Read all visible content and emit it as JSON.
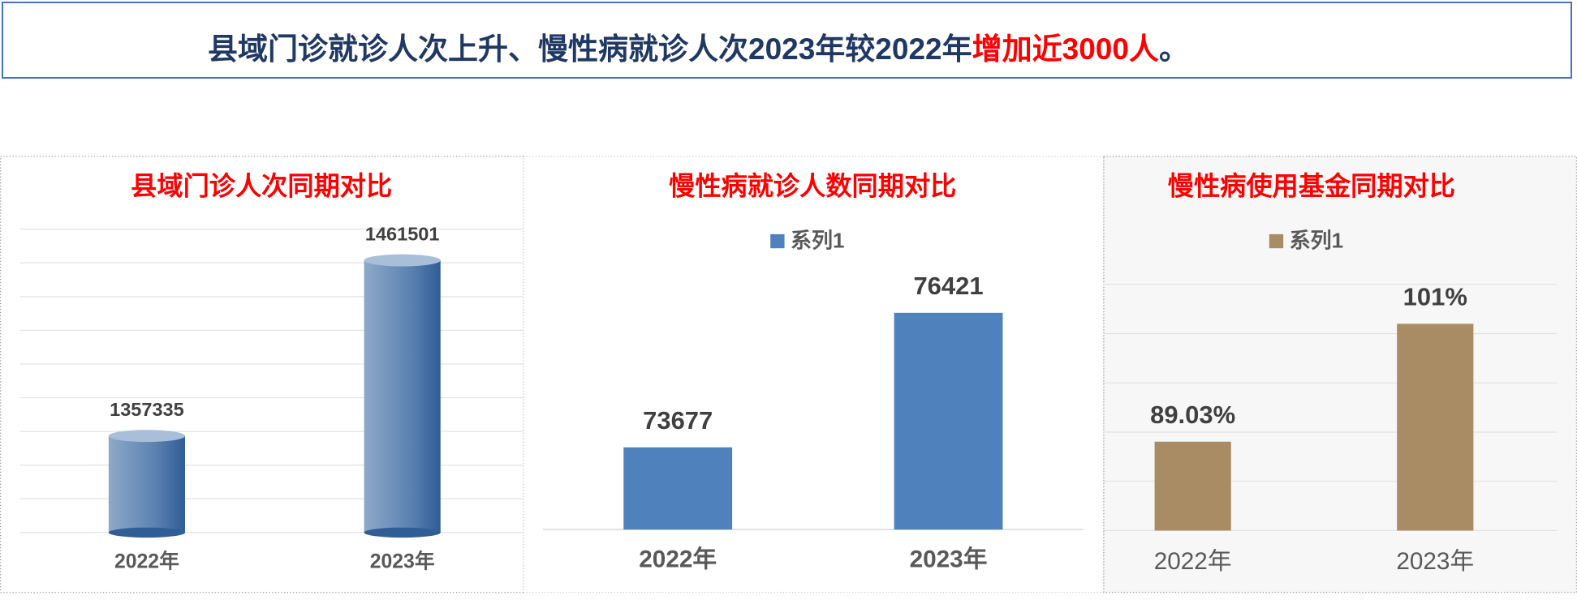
{
  "header": {
    "title_parts": [
      "县域门诊就诊人次上升、慢性病就诊人次2023年较2022年",
      "增加近3000人",
      "。"
    ]
  },
  "chart_data": [
    {
      "type": "bar",
      "title": "县域门诊人次同期对比",
      "categories": [
        "2022年",
        "2023年"
      ],
      "values": [
        1357335,
        1461501
      ],
      "color": "#2f5d96",
      "ylim": [
        1300000,
        1480000
      ],
      "yticks": [
        1300000,
        1320000,
        1340000,
        1360000,
        1380000,
        1400000,
        1420000,
        1440000,
        1460000,
        1480000
      ],
      "grid": true
    },
    {
      "type": "bar",
      "title": "慢性病就诊人数同期对比",
      "categories": [
        "2022年",
        "2023年"
      ],
      "series": [
        {
          "name": "系列1",
          "color": "#4f81bd",
          "values": [
            73677,
            76421
          ]
        }
      ],
      "ylim": [
        72000,
        77000
      ],
      "grid": false
    },
    {
      "type": "bar",
      "title": "慢性病使用基金同期对比",
      "categories": [
        "2022年",
        "2023年"
      ],
      "series": [
        {
          "name": "系列1",
          "color": "#a98c64",
          "values": [
            89.03,
            101
          ],
          "value_labels": [
            "89.03%",
            "101%"
          ]
        }
      ],
      "ylim": [
        80,
        105
      ],
      "yticks": [
        80,
        85,
        90,
        95,
        100,
        105
      ],
      "grid": true
    }
  ]
}
